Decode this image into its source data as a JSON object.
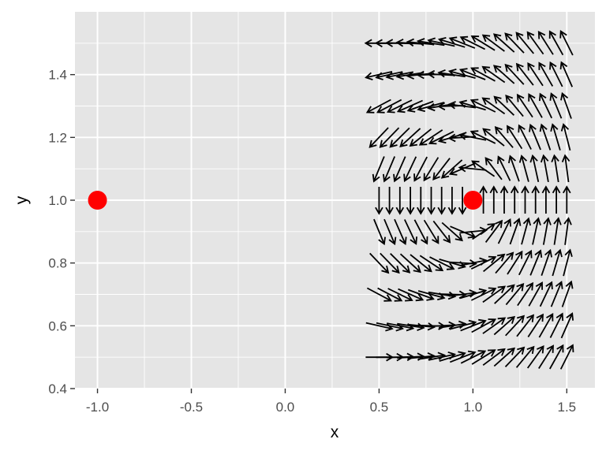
{
  "chart_data": {
    "type": "scatter",
    "title": "",
    "xlabel": "x",
    "ylabel": "y",
    "xlim": [
      -1.12,
      1.65
    ],
    "ylim": [
      0.4,
      1.6
    ],
    "x_ticks": [
      -1.0,
      -0.5,
      0.0,
      0.5,
      1.0,
      1.5
    ],
    "x_tick_labels": [
      "-1.0",
      "-0.5",
      "0.0",
      "0.5",
      "1.0",
      "1.5"
    ],
    "y_ticks": [
      0.4,
      0.6,
      0.8,
      1.0,
      1.2,
      1.4
    ],
    "y_tick_labels": [
      "0.4",
      "0.6",
      "0.8",
      "1.0",
      "1.2",
      "1.4"
    ],
    "grid": true,
    "panel_background": "#e5e5e5",
    "grid_color": "#ffffff",
    "points": {
      "color": "#ff0000",
      "x": [
        -1.0,
        1.0
      ],
      "y": [
        1.0,
        1.0
      ]
    },
    "vector_field": {
      "color": "#000000",
      "description_of_layer": "arrows on a regular grid",
      "x_grid": [
        0.5,
        0.5556,
        0.6111,
        0.6667,
        0.7222,
        0.7778,
        0.8333,
        0.8889,
        0.9444,
        1.0,
        1.0556,
        1.1111,
        1.1667,
        1.2222,
        1.2778,
        1.3333,
        1.3889,
        1.4444,
        1.5
      ],
      "y_grid": [
        0.5,
        0.6,
        0.7,
        0.8,
        0.9,
        1.0,
        1.1,
        1.2,
        1.3,
        1.4,
        1.5
      ]
    }
  }
}
